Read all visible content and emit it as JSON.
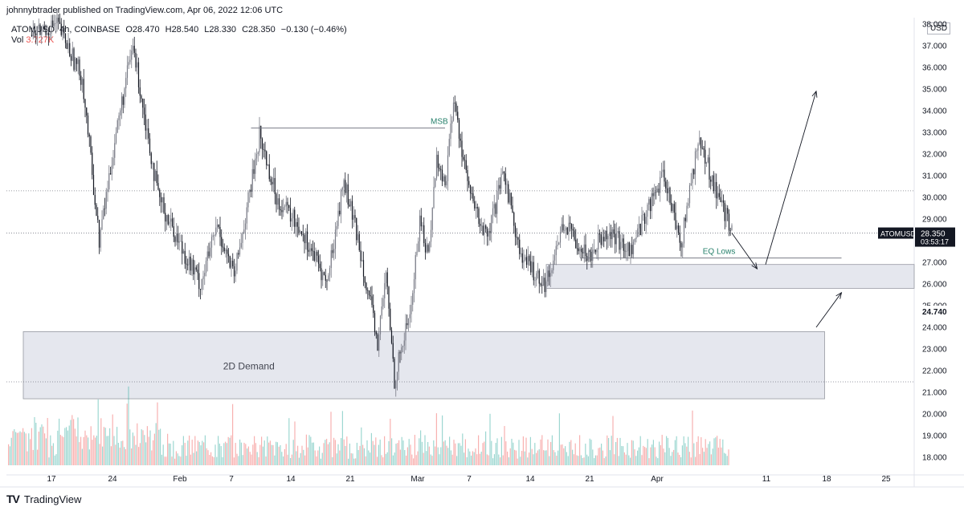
{
  "header": {
    "publisher": "johnnybtrader published on TradingView.com, Apr 06, 2022 12:06 UTC",
    "symbol": "ATOMUSD, 4h, COINBASE",
    "open": "O28.470",
    "high": "H28.540",
    "low": "L28.330",
    "close": "C28.350",
    "change": "−0.130 (−0.46%)",
    "vol_label": "Vol",
    "vol_value": "3.727K",
    "currency": "USD"
  },
  "brand": {
    "name": "TradingView",
    "logo": "TV"
  },
  "colors": {
    "candle": "#131722",
    "candle_up": "#787b86",
    "vol_up": "#26a69a",
    "vol_down": "#ef5350",
    "zone": "#e0e3eb",
    "annotation_green": "#26806b",
    "level_line": "#787b86"
  },
  "chart_data": {
    "type": "candlestick",
    "symbol": "ATOMUSD",
    "interval": "4h",
    "x_tick_labels": [
      "17",
      "24",
      "Feb",
      "7",
      "14",
      "21",
      "Mar",
      "7",
      "14",
      "21",
      "Apr",
      "11",
      "18",
      "25"
    ],
    "y_tick_labels": [
      "18.000",
      "19.000",
      "20.000",
      "21.000",
      "22.000",
      "23.000",
      "24.000",
      "25.000",
      "26.000",
      "27.000",
      "28.000",
      "29.000",
      "30.000",
      "31.000",
      "32.000",
      "33.000",
      "34.000",
      "35.000",
      "36.000",
      "37.000",
      "38.000"
    ],
    "y_range": [
      17.5,
      38.5
    ],
    "price_key_points": [
      {
        "x": "2022-01-13",
        "y": 37.5
      },
      {
        "x": "2022-01-16",
        "y": 38.0
      },
      {
        "x": "2022-01-19",
        "y": 35.5
      },
      {
        "x": "2022-01-21",
        "y": 28.0
      },
      {
        "x": "2022-01-23",
        "y": 33.0
      },
      {
        "x": "2022-01-25",
        "y": 37.0
      },
      {
        "x": "2022-01-28",
        "y": 30.0
      },
      {
        "x": "2022-01-31",
        "y": 27.5
      },
      {
        "x": "2022-02-02",
        "y": 26.0
      },
      {
        "x": "2022-02-04",
        "y": 28.7
      },
      {
        "x": "2022-02-06",
        "y": 26.3
      },
      {
        "x": "2022-02-08",
        "y": 30.5
      },
      {
        "x": "2022-02-09",
        "y": 32.9
      },
      {
        "x": "2022-02-11",
        "y": 30.0
      },
      {
        "x": "2022-02-14",
        "y": 28.5
      },
      {
        "x": "2022-02-17",
        "y": 26.0
      },
      {
        "x": "2022-02-19",
        "y": 30.8
      },
      {
        "x": "2022-02-21",
        "y": 27.5
      },
      {
        "x": "2022-02-23",
        "y": 23.2
      },
      {
        "x": "2022-02-24",
        "y": 26.4
      },
      {
        "x": "2022-02-25",
        "y": 21.6
      },
      {
        "x": "2022-02-27",
        "y": 25.0
      },
      {
        "x": "2022-02-28",
        "y": 29.0
      },
      {
        "x": "2022-03-01",
        "y": 27.3
      },
      {
        "x": "2022-03-02",
        "y": 31.8
      },
      {
        "x": "2022-03-03",
        "y": 30.5
      },
      {
        "x": "2022-03-04",
        "y": 34.5
      },
      {
        "x": "2022-03-06",
        "y": 30.0
      },
      {
        "x": "2022-03-08",
        "y": 28.0
      },
      {
        "x": "2022-03-10",
        "y": 31.2
      },
      {
        "x": "2022-03-12",
        "y": 27.2
      },
      {
        "x": "2022-03-15",
        "y": 26.0
      },
      {
        "x": "2022-03-17",
        "y": 28.8
      },
      {
        "x": "2022-03-20",
        "y": 27.3
      },
      {
        "x": "2022-03-22",
        "y": 28.5
      },
      {
        "x": "2022-03-25",
        "y": 27.5
      },
      {
        "x": "2022-03-27",
        "y": 29.5
      },
      {
        "x": "2022-03-29",
        "y": 31.0
      },
      {
        "x": "2022-03-31",
        "y": 27.8
      },
      {
        "x": "2022-04-02",
        "y": 32.7
      },
      {
        "x": "2022-04-04",
        "y": 30.5
      },
      {
        "x": "2022-04-06",
        "y": 28.35
      }
    ],
    "horizontal_levels": [
      {
        "name": "dotted-level-upper",
        "y": 30.3
      },
      {
        "name": "dotted-level-lower",
        "y": 28.35
      }
    ],
    "zones": [
      {
        "label": "2D Demand",
        "y_low": 20.7,
        "y_high": 23.8,
        "x_start": "2022-01-12",
        "x_end": "2022-04-17"
      },
      {
        "label": "",
        "y_low": 25.8,
        "y_high": 26.9,
        "x_start": "2022-03-15",
        "x_end": "2022-04-30"
      }
    ],
    "annotations": [
      {
        "text": "MSB",
        "level": 33.2,
        "x_start": "2022-02-08",
        "x_end": "2022-03-03"
      },
      {
        "text": "EQ Lows",
        "level": 27.2,
        "x_start": "2022-03-19",
        "x_end": "2022-04-19"
      }
    ],
    "projection_path": [
      {
        "x": "2022-04-06",
        "y": 28.35
      },
      {
        "x": "2022-04-09",
        "y": 26.7
      },
      {
        "x": "2022-04-10",
        "y": 26.9
      },
      {
        "x": "2022-04-16",
        "y": 34.9
      }
    ],
    "alt_projection": [
      {
        "x": "2022-04-16",
        "y": 24.0
      },
      {
        "x": "2022-04-19",
        "y": 25.6
      }
    ],
    "price_label": {
      "symbol": "ATOMUSD",
      "price": "28.350",
      "countdown": "03:53:17"
    },
    "crosshair_label": "24.740",
    "grid": false,
    "volume": true
  }
}
